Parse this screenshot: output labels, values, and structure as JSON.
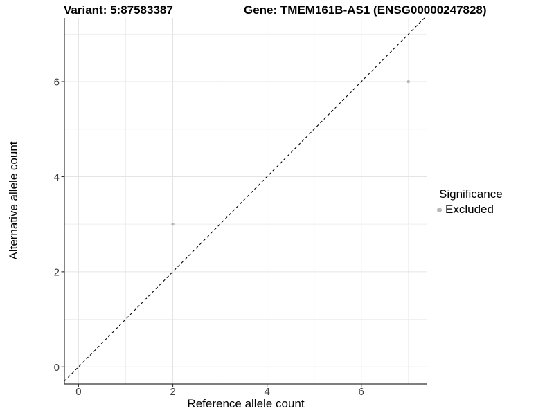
{
  "header": {
    "variant_title": "Variant: 5:87583387",
    "gene_title": "Gene: TMEM161B-AS1 (ENSG00000247828)"
  },
  "legend": {
    "title": "Significance",
    "items": [
      {
        "label": "Excluded",
        "color": "#b8b8b8"
      }
    ]
  },
  "chart_data": {
    "type": "scatter",
    "title": "",
    "xlabel": "Reference allele count",
    "ylabel": "Alternative allele count",
    "xlim": [
      -0.3,
      7.4
    ],
    "ylim": [
      -0.36,
      7.34
    ],
    "x_ticks": [
      0,
      2,
      4,
      6
    ],
    "y_ticks": [
      0,
      2,
      4,
      6
    ],
    "x_minor_ticks": [
      1,
      3,
      5,
      7
    ],
    "y_minor_ticks": [
      1,
      3,
      5,
      7
    ],
    "grid": true,
    "legend_position": "right",
    "series": [
      {
        "name": "Excluded",
        "color": "#b8b8b8",
        "points": [
          {
            "x": 2,
            "y": 3
          },
          {
            "x": 7,
            "y": 6
          }
        ]
      }
    ],
    "reference_line": {
      "type": "identity",
      "style": "dashed",
      "color": "#000000"
    },
    "colors": {
      "grid_major": "#e4e4e4",
      "grid_minor": "#eeeeee",
      "axis": "#333333",
      "tick_label": "#404040"
    }
  }
}
